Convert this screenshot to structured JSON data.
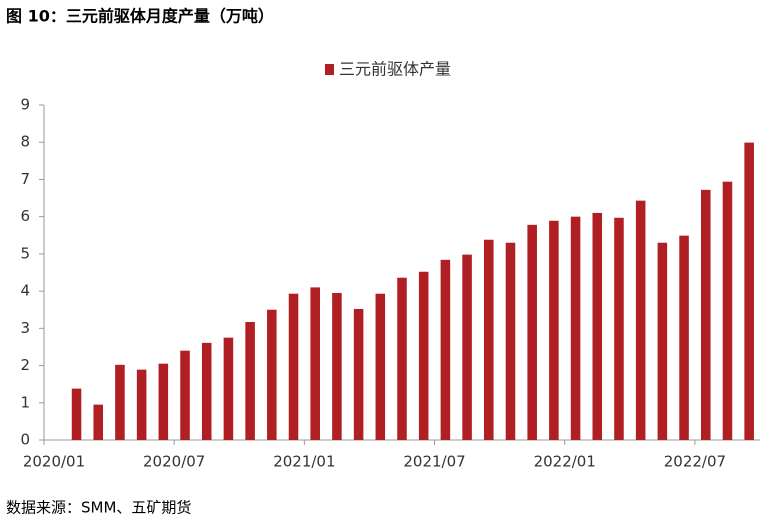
{
  "title": "图 10：三元前驱体月度产量（万吨）",
  "source": "数据来源：SMM、五矿期货",
  "chart_data": {
    "type": "bar",
    "categories": [
      "2020/01",
      null,
      null,
      null,
      null,
      null,
      "2020/07",
      null,
      null,
      null,
      null,
      null,
      "2021/01",
      null,
      null,
      null,
      null,
      null,
      "2021/07",
      null,
      null,
      null,
      null,
      null,
      "2022/01",
      null,
      null,
      null,
      null,
      null,
      "2022/07",
      null,
      null
    ],
    "series": [
      {
        "name": "三元前驱体产量",
        "color": "#b01f24",
        "values": [
          null,
          1.38,
          0.95,
          2.02,
          1.89,
          2.05,
          2.4,
          2.61,
          2.75,
          3.17,
          3.5,
          3.93,
          4.1,
          3.95,
          3.52,
          3.93,
          4.36,
          4.52,
          4.84,
          4.98,
          5.38,
          5.3,
          5.78,
          5.89,
          6.0,
          6.1,
          5.97,
          6.43,
          5.3,
          5.49,
          6.72,
          6.94,
          7.99
        ]
      }
    ],
    "ylim": [
      0,
      9
    ],
    "yticks": [
      0,
      1,
      2,
      3,
      4,
      5,
      6,
      7,
      8,
      9
    ],
    "legend": "top",
    "grid": false
  }
}
